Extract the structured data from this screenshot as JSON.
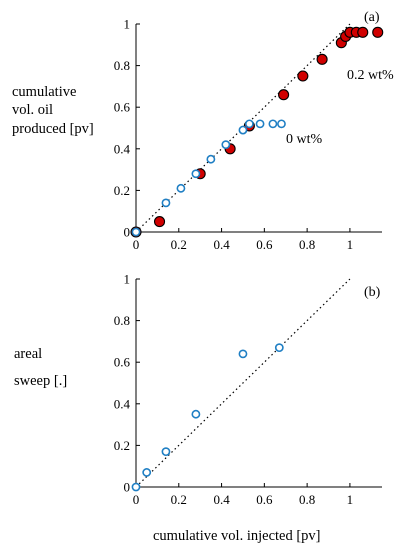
{
  "chart_data": [
    {
      "type": "scatter",
      "panel_label": "(a)",
      "ylabel": [
        "cumulative",
        "vol. oil",
        "produced [pv]"
      ],
      "xlim": [
        0,
        1.15
      ],
      "ylim": [
        0,
        1
      ],
      "x_ticks": [
        "0",
        "0.2",
        "0.4",
        "0.6",
        "0.8",
        "1"
      ],
      "y_ticks": [
        "0",
        "0.2",
        "0.4",
        "0.6",
        "0.8",
        "1"
      ],
      "reference_line": {
        "style": "dotted",
        "from": [
          0,
          0
        ],
        "to": [
          1,
          1
        ]
      },
      "series": [
        {
          "name": "0.2 wt%",
          "marker": "filled-circle",
          "color": "#d00000",
          "points": [
            [
              0,
              0
            ],
            [
              0.11,
              0.05
            ],
            [
              0.3,
              0.28
            ],
            [
              0.44,
              0.4
            ],
            [
              0.53,
              0.51
            ],
            [
              0.69,
              0.66
            ],
            [
              0.78,
              0.75
            ],
            [
              0.87,
              0.83
            ],
            [
              0.96,
              0.91
            ],
            [
              0.98,
              0.94
            ],
            [
              1.0,
              0.96
            ],
            [
              1.03,
              0.96
            ],
            [
              1.06,
              0.96
            ],
            [
              1.13,
              0.96
            ]
          ]
        },
        {
          "name": "0 wt%",
          "marker": "open-circle",
          "color": "#1f7fc4",
          "points": [
            [
              0,
              0
            ],
            [
              0.14,
              0.14
            ],
            [
              0.21,
              0.21
            ],
            [
              0.28,
              0.28
            ],
            [
              0.35,
              0.35
            ],
            [
              0.42,
              0.42
            ],
            [
              0.5,
              0.49
            ],
            [
              0.53,
              0.52
            ],
            [
              0.58,
              0.52
            ],
            [
              0.64,
              0.52
            ],
            [
              0.68,
              0.52
            ]
          ]
        }
      ]
    },
    {
      "type": "scatter",
      "panel_label": "(b)",
      "ylabel": [
        "areal",
        "sweep [.]"
      ],
      "xlabel": "cumulative vol. injected [pv]",
      "xlim": [
        0,
        1.15
      ],
      "ylim": [
        0,
        1
      ],
      "x_ticks": [
        "0",
        "0.2",
        "0.4",
        "0.6",
        "0.8",
        "1"
      ],
      "y_ticks": [
        "0",
        "0.2",
        "0.4",
        "0.6",
        "0.8",
        "1"
      ],
      "reference_line": {
        "style": "dotted",
        "from": [
          0,
          0
        ],
        "to": [
          1,
          1
        ]
      },
      "series": [
        {
          "marker": "open-circle",
          "color": "#1f7fc4",
          "points": [
            [
              0,
              0
            ],
            [
              0.05,
              0.07
            ],
            [
              0.14,
              0.17
            ],
            [
              0.28,
              0.35
            ],
            [
              0.5,
              0.64
            ],
            [
              0.67,
              0.67
            ]
          ]
        }
      ]
    }
  ]
}
